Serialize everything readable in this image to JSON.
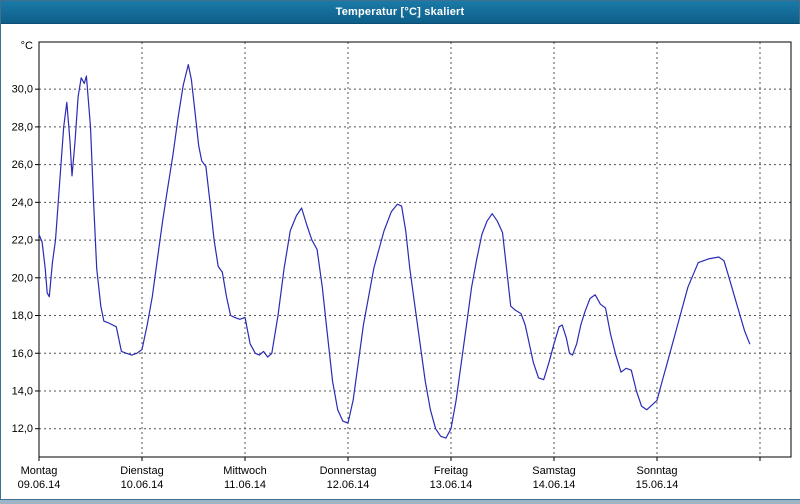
{
  "window": {
    "title": "Temperatur [°C] skaliert"
  },
  "chart_data": {
    "type": "line",
    "title": "Temperatur [°C] skaliert",
    "ylabel": "°C",
    "xlabel": "",
    "legend": [],
    "grid": "dashed",
    "line_color": "#2b2bb4",
    "ylim": [
      10.5,
      32.5
    ],
    "yticks": [
      12,
      14,
      16,
      18,
      20,
      22,
      24,
      26,
      28,
      30
    ],
    "ytick_labels": [
      "12,0",
      "14,0",
      "16,0",
      "18,0",
      "20,0",
      "22,0",
      "24,0",
      "26,0",
      "28,0",
      "30,0"
    ],
    "x_day_labels": [
      {
        "name": "Montag",
        "date": "09.06.14"
      },
      {
        "name": "Dienstag",
        "date": "10.06.14"
      },
      {
        "name": "Mittwoch",
        "date": "11.06.14"
      },
      {
        "name": "Donnerstag",
        "date": "12.06.14"
      },
      {
        "name": "Freitag",
        "date": "13.06.14"
      },
      {
        "name": "Samstag",
        "date": "14.06.14"
      },
      {
        "name": "Sonntag",
        "date": "15.06.14"
      }
    ],
    "x_unit": "day_index",
    "points": [
      [
        0.0,
        22.3
      ],
      [
        0.03,
        21.9
      ],
      [
        0.06,
        20.5
      ],
      [
        0.08,
        19.2
      ],
      [
        0.1,
        19.0
      ],
      [
        0.13,
        20.8
      ],
      [
        0.16,
        22.0
      ],
      [
        0.2,
        25.0
      ],
      [
        0.24,
        28.0
      ],
      [
        0.27,
        29.3
      ],
      [
        0.3,
        27.3
      ],
      [
        0.32,
        25.4
      ],
      [
        0.35,
        27.2
      ],
      [
        0.38,
        29.6
      ],
      [
        0.41,
        30.6
      ],
      [
        0.44,
        30.3
      ],
      [
        0.46,
        30.7
      ],
      [
        0.5,
        28.0
      ],
      [
        0.53,
        24.0
      ],
      [
        0.56,
        20.5
      ],
      [
        0.6,
        18.5
      ],
      [
        0.63,
        17.7
      ],
      [
        0.68,
        17.6
      ],
      [
        0.75,
        17.4
      ],
      [
        0.8,
        16.1
      ],
      [
        0.85,
        16.0
      ],
      [
        0.9,
        15.9
      ],
      [
        0.95,
        16.0
      ],
      [
        1.0,
        16.2
      ],
      [
        1.05,
        17.5
      ],
      [
        1.1,
        19.0
      ],
      [
        1.15,
        21.0
      ],
      [
        1.2,
        23.0
      ],
      [
        1.25,
        24.8
      ],
      [
        1.3,
        26.5
      ],
      [
        1.35,
        28.5
      ],
      [
        1.4,
        30.2
      ],
      [
        1.45,
        31.3
      ],
      [
        1.48,
        30.5
      ],
      [
        1.52,
        28.5
      ],
      [
        1.55,
        27.0
      ],
      [
        1.58,
        26.2
      ],
      [
        1.62,
        25.9
      ],
      [
        1.66,
        24.0
      ],
      [
        1.7,
        22.0
      ],
      [
        1.74,
        20.6
      ],
      [
        1.78,
        20.3
      ],
      [
        1.82,
        19.0
      ],
      [
        1.86,
        18.0
      ],
      [
        1.9,
        17.9
      ],
      [
        1.95,
        17.8
      ],
      [
        2.0,
        17.9
      ],
      [
        2.05,
        16.5
      ],
      [
        2.1,
        16.0
      ],
      [
        2.14,
        15.9
      ],
      [
        2.18,
        16.1
      ],
      [
        2.22,
        15.8
      ],
      [
        2.26,
        16.0
      ],
      [
        2.32,
        18.0
      ],
      [
        2.38,
        20.5
      ],
      [
        2.44,
        22.5
      ],
      [
        2.5,
        23.3
      ],
      [
        2.55,
        23.7
      ],
      [
        2.6,
        22.8
      ],
      [
        2.65,
        22.0
      ],
      [
        2.7,
        21.5
      ],
      [
        2.75,
        19.5
      ],
      [
        2.8,
        17.0
      ],
      [
        2.85,
        14.5
      ],
      [
        2.9,
        13.0
      ],
      [
        2.95,
        12.4
      ],
      [
        3.0,
        12.3
      ],
      [
        3.05,
        13.5
      ],
      [
        3.1,
        15.5
      ],
      [
        3.15,
        17.5
      ],
      [
        3.2,
        19.0
      ],
      [
        3.25,
        20.5
      ],
      [
        3.3,
        21.5
      ],
      [
        3.35,
        22.5
      ],
      [
        3.42,
        23.5
      ],
      [
        3.48,
        23.9
      ],
      [
        3.52,
        23.8
      ],
      [
        3.56,
        22.5
      ],
      [
        3.6,
        20.5
      ],
      [
        3.65,
        18.5
      ],
      [
        3.7,
        16.5
      ],
      [
        3.75,
        14.5
      ],
      [
        3.8,
        13.0
      ],
      [
        3.85,
        12.0
      ],
      [
        3.9,
        11.6
      ],
      [
        3.95,
        11.5
      ],
      [
        4.0,
        12.0
      ],
      [
        4.05,
        13.5
      ],
      [
        4.1,
        15.5
      ],
      [
        4.15,
        17.5
      ],
      [
        4.2,
        19.5
      ],
      [
        4.25,
        21.0
      ],
      [
        4.3,
        22.3
      ],
      [
        4.35,
        23.0
      ],
      [
        4.4,
        23.4
      ],
      [
        4.45,
        23.0
      ],
      [
        4.5,
        22.4
      ],
      [
        4.55,
        20.0
      ],
      [
        4.58,
        18.5
      ],
      [
        4.62,
        18.3
      ],
      [
        4.68,
        18.1
      ],
      [
        4.72,
        17.5
      ],
      [
        4.76,
        16.5
      ],
      [
        4.8,
        15.5
      ],
      [
        4.85,
        14.7
      ],
      [
        4.9,
        14.6
      ],
      [
        4.95,
        15.5
      ],
      [
        5.0,
        16.5
      ],
      [
        5.05,
        17.4
      ],
      [
        5.08,
        17.5
      ],
      [
        5.12,
        16.8
      ],
      [
        5.15,
        16.0
      ],
      [
        5.18,
        15.9
      ],
      [
        5.22,
        16.5
      ],
      [
        5.26,
        17.5
      ],
      [
        5.3,
        18.2
      ],
      [
        5.35,
        18.9
      ],
      [
        5.4,
        19.1
      ],
      [
        5.45,
        18.6
      ],
      [
        5.5,
        18.4
      ],
      [
        5.55,
        17.0
      ],
      [
        5.6,
        15.9
      ],
      [
        5.65,
        15.0
      ],
      [
        5.7,
        15.2
      ],
      [
        5.75,
        15.1
      ],
      [
        5.8,
        14.0
      ],
      [
        5.85,
        13.2
      ],
      [
        5.9,
        13.0
      ],
      [
        6.0,
        13.5
      ],
      [
        6.05,
        14.5
      ],
      [
        6.1,
        15.5
      ],
      [
        6.2,
        17.5
      ],
      [
        6.3,
        19.5
      ],
      [
        6.4,
        20.8
      ],
      [
        6.5,
        21.0
      ],
      [
        6.6,
        21.1
      ],
      [
        6.65,
        20.9
      ],
      [
        6.7,
        20.0
      ],
      [
        6.78,
        18.5
      ],
      [
        6.85,
        17.2
      ],
      [
        6.9,
        16.5
      ]
    ]
  }
}
